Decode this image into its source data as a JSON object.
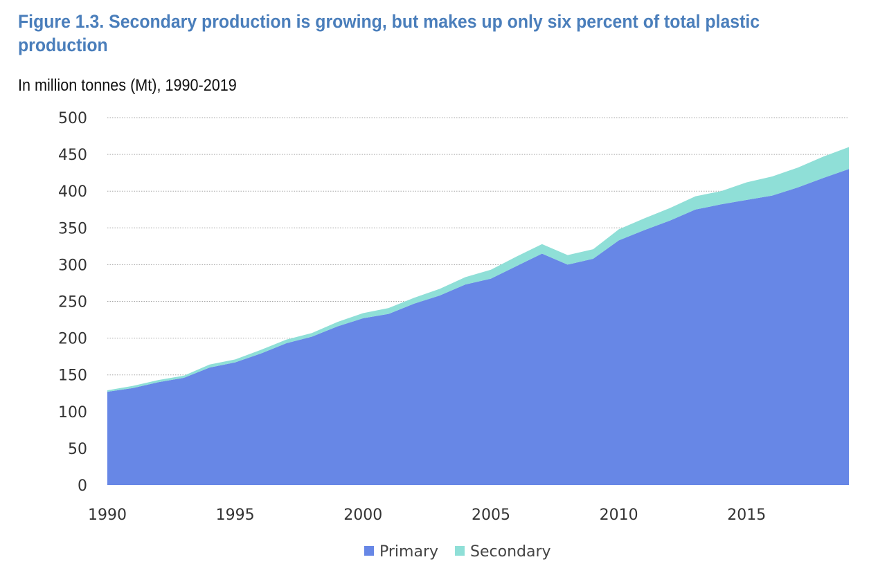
{
  "title": "Figure 1.3. Secondary production is growing, but makes up only six percent of total plastic production",
  "subtitle": "In million tonnes (Mt), 1990-2019",
  "colors": {
    "primary": "#6787e6",
    "secondary": "#8fdfd7",
    "title": "#4a7ebb",
    "grid": "#a6a6a6"
  },
  "chart_data": {
    "type": "area",
    "stacked": true,
    "x": [
      1990,
      1991,
      1992,
      1993,
      1994,
      1995,
      1996,
      1997,
      1998,
      1999,
      2000,
      2001,
      2002,
      2003,
      2004,
      2005,
      2006,
      2007,
      2008,
      2009,
      2010,
      2011,
      2012,
      2013,
      2014,
      2015,
      2016,
      2017,
      2018,
      2019
    ],
    "series": [
      {
        "name": "Primary",
        "color": "#6787e6",
        "values": [
          127,
          132,
          140,
          146,
          160,
          167,
          179,
          193,
          202,
          216,
          227,
          233,
          247,
          258,
          273,
          281,
          298,
          315,
          300,
          308,
          333,
          347,
          360,
          375,
          382,
          388,
          394,
          405,
          418,
          430
        ]
      },
      {
        "name": "Secondary",
        "color": "#8fdfd7",
        "values": [
          2,
          3,
          3,
          3,
          4,
          4,
          5,
          5,
          5,
          6,
          7,
          8,
          8,
          9,
          10,
          12,
          13,
          13,
          13,
          13,
          15,
          16,
          17,
          18,
          18,
          24,
          26,
          27,
          29,
          30
        ]
      }
    ],
    "xticks": [
      1990,
      1995,
      2000,
      2005,
      2010,
      2015
    ],
    "yticks": [
      0,
      50,
      100,
      150,
      200,
      250,
      300,
      350,
      400,
      450,
      500
    ],
    "ylim": [
      0,
      500
    ],
    "xlim": [
      1990,
      2019
    ],
    "grid": "horizontal dotted",
    "legend": "bottom-center"
  }
}
